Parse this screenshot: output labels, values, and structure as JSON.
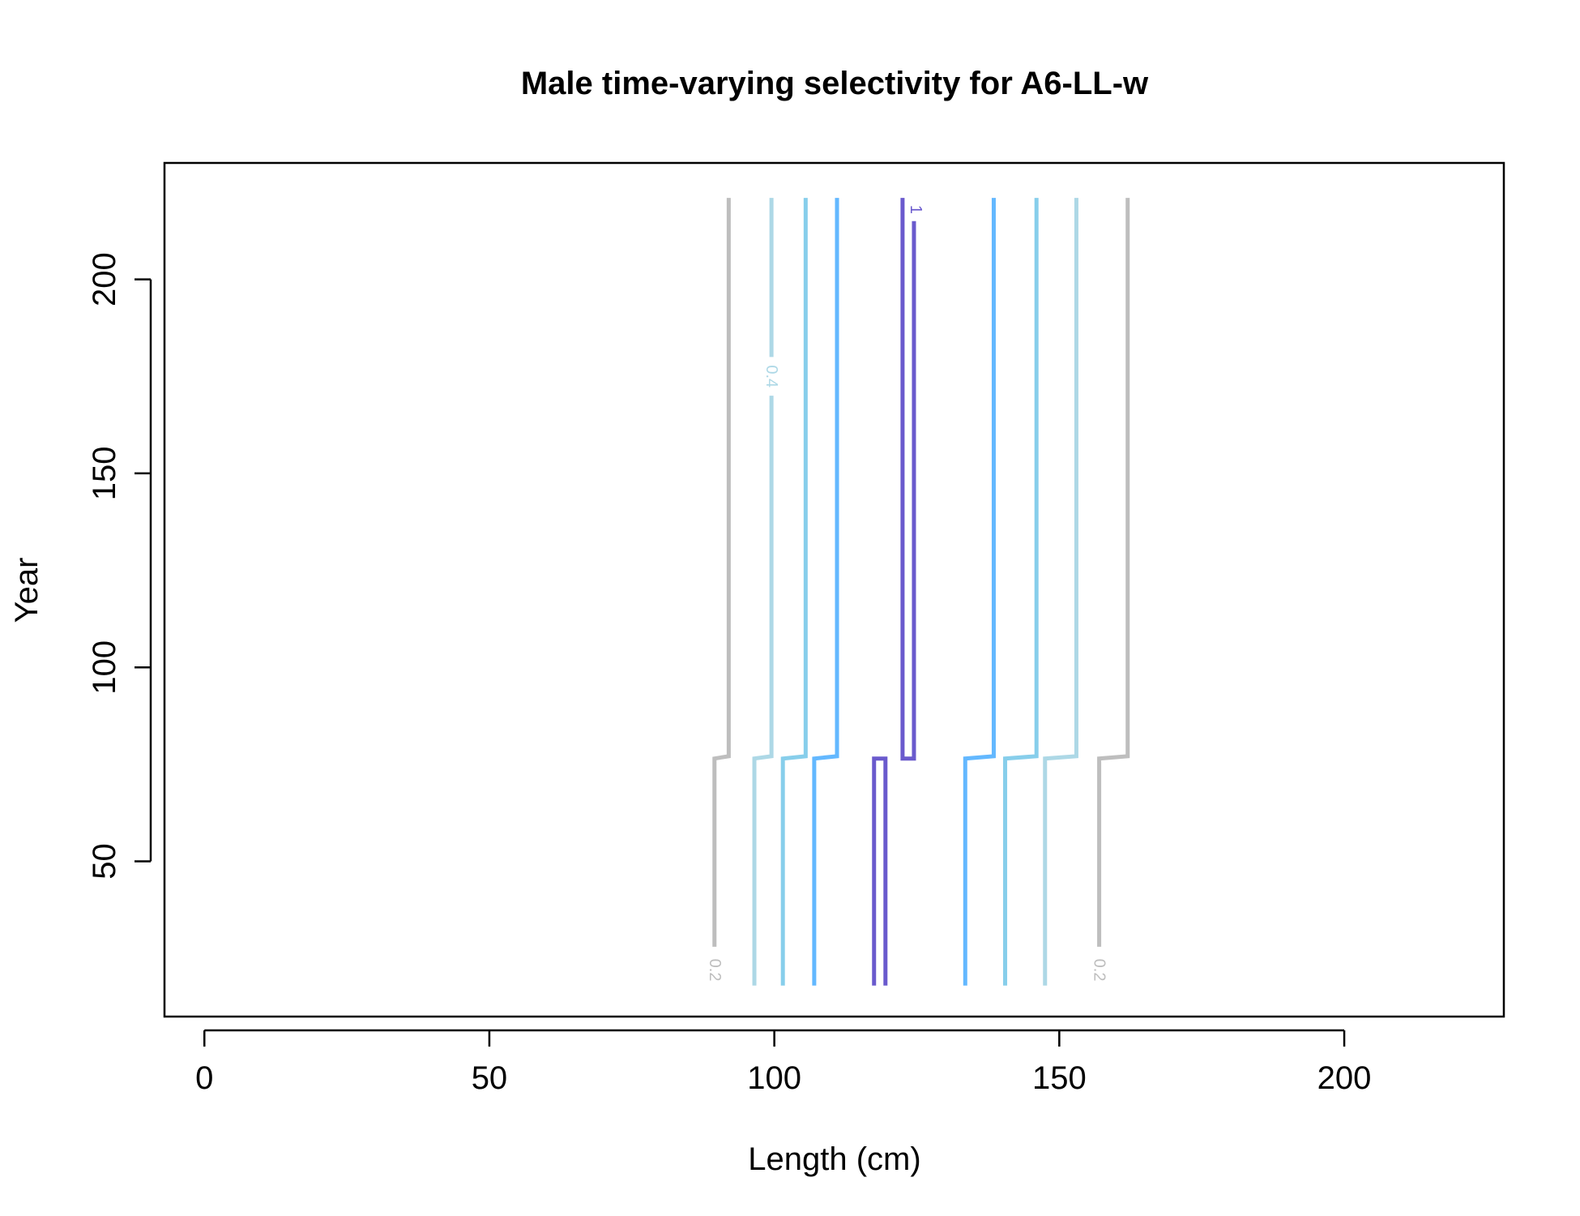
{
  "chart_data": {
    "type": "contour",
    "title": "Male time-varying selectivity for A6-LL-w",
    "xlabel": "Length (cm)",
    "ylabel": "Year",
    "xlim": [
      -7,
      228
    ],
    "ylim": [
      10,
      230
    ],
    "xticks": [
      0,
      50,
      100,
      150,
      200
    ],
    "yticks": [
      50,
      100,
      150,
      200
    ],
    "grid": false,
    "legend": "none",
    "contours": [
      {
        "level": 0.2,
        "side": "left",
        "color": "#bebebe",
        "x_early": 89.5,
        "x_late": 92.0,
        "label": "0.2"
      },
      {
        "level": 0.4,
        "side": "left",
        "color": "#add8e6",
        "x_early": 96.5,
        "x_late": 99.5,
        "label": "0.4"
      },
      {
        "level": 0.6,
        "side": "left",
        "color": "#87ceeb",
        "x_early": 101.5,
        "x_late": 105.5
      },
      {
        "level": 0.8,
        "side": "left",
        "color": "#63b8ff",
        "x_early": 107.0,
        "x_late": 111.0
      },
      {
        "level": 0.8,
        "side": "right",
        "color": "#63b8ff",
        "x_early": 133.5,
        "x_late": 138.5
      },
      {
        "level": 0.6,
        "side": "right",
        "color": "#87ceeb",
        "x_early": 140.5,
        "x_late": 146.0
      },
      {
        "level": 0.4,
        "side": "right",
        "color": "#add8e6",
        "x_early": 147.5,
        "x_late": 153.0
      },
      {
        "level": 0.2,
        "side": "right",
        "color": "#bebebe",
        "x_early": 157.0,
        "x_late": 162.0,
        "label": "0.2"
      }
    ],
    "peak_contours": [
      {
        "level": 1,
        "color": "#6a5acd",
        "x_left": 117.5,
        "x_right": 119.5,
        "period": "early"
      },
      {
        "level": 1,
        "color": "#6a5acd",
        "x_left": 122.5,
        "x_right": 124.5,
        "period": "late",
        "label": "1"
      }
    ],
    "year_start": 18,
    "year_shift": 76.5,
    "year_end": 221
  }
}
